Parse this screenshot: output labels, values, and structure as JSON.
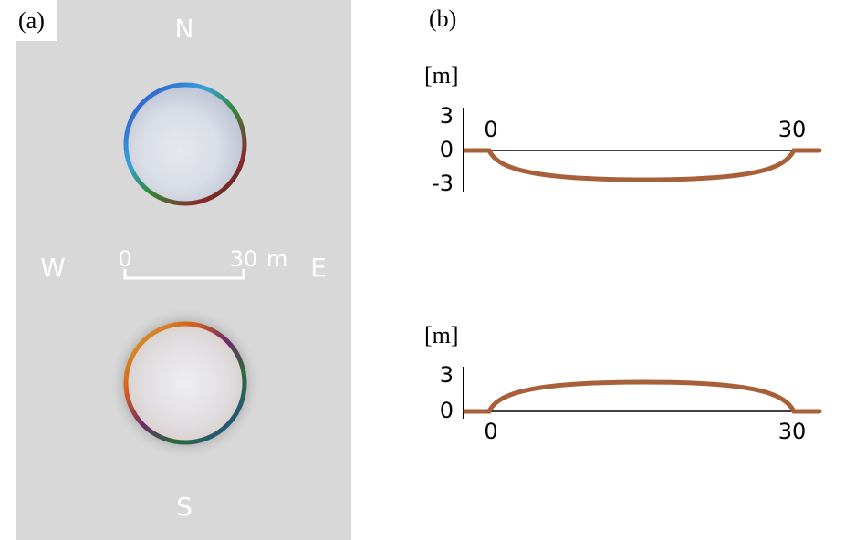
{
  "panel_a": {
    "label": "(a)",
    "compass": {
      "north": "N",
      "south": "S",
      "west": "W",
      "east": "E"
    },
    "scale_bar": {
      "start": "0",
      "end": "30",
      "unit": "m"
    }
  },
  "panel_b": {
    "label": "(b)",
    "profiles": [
      {
        "unit": "[m]",
        "yticks": [
          3,
          0,
          -3
        ],
        "xticks": [
          0,
          30
        ]
      },
      {
        "unit": "[m]",
        "yticks": [
          3,
          0
        ],
        "xticks": [
          0,
          30
        ]
      }
    ]
  }
}
